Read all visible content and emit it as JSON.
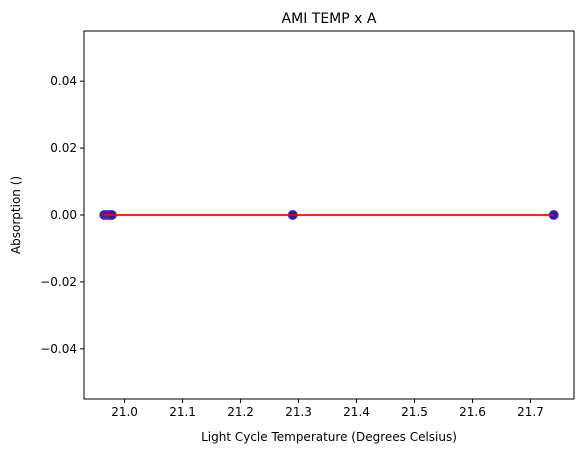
{
  "chart_data": {
    "type": "scatter",
    "title": "AMI TEMP x A",
    "xlabel": "Light Cycle Temperature (Degrees Celsius)",
    "ylabel": "Absorption ()",
    "xlim": [
      20.93,
      21.775
    ],
    "ylim": [
      -0.055,
      0.055
    ],
    "xticks": [
      21.0,
      21.1,
      21.2,
      21.3,
      21.4,
      21.5,
      21.6,
      21.7
    ],
    "xtick_labels": [
      "21.0",
      "21.1",
      "21.2",
      "21.3",
      "21.4",
      "21.5",
      "21.6",
      "21.7"
    ],
    "yticks": [
      -0.04,
      -0.02,
      0.0,
      0.02,
      0.04
    ],
    "ytick_labels": [
      "−0.04",
      "−0.02",
      "0.00",
      "0.02",
      "0.04"
    ],
    "grid": false,
    "series": [
      {
        "kind": "scatter",
        "x": [
          20.965,
          20.97,
          20.975,
          20.978,
          21.29,
          21.74
        ],
        "y": [
          0,
          0,
          0,
          0,
          0,
          0
        ],
        "color": "#1f1fb4",
        "edge_color": "#6a2c91"
      },
      {
        "kind": "line",
        "x": [
          20.965,
          21.74
        ],
        "y": [
          0,
          0
        ],
        "color": "#ff0000"
      }
    ]
  }
}
